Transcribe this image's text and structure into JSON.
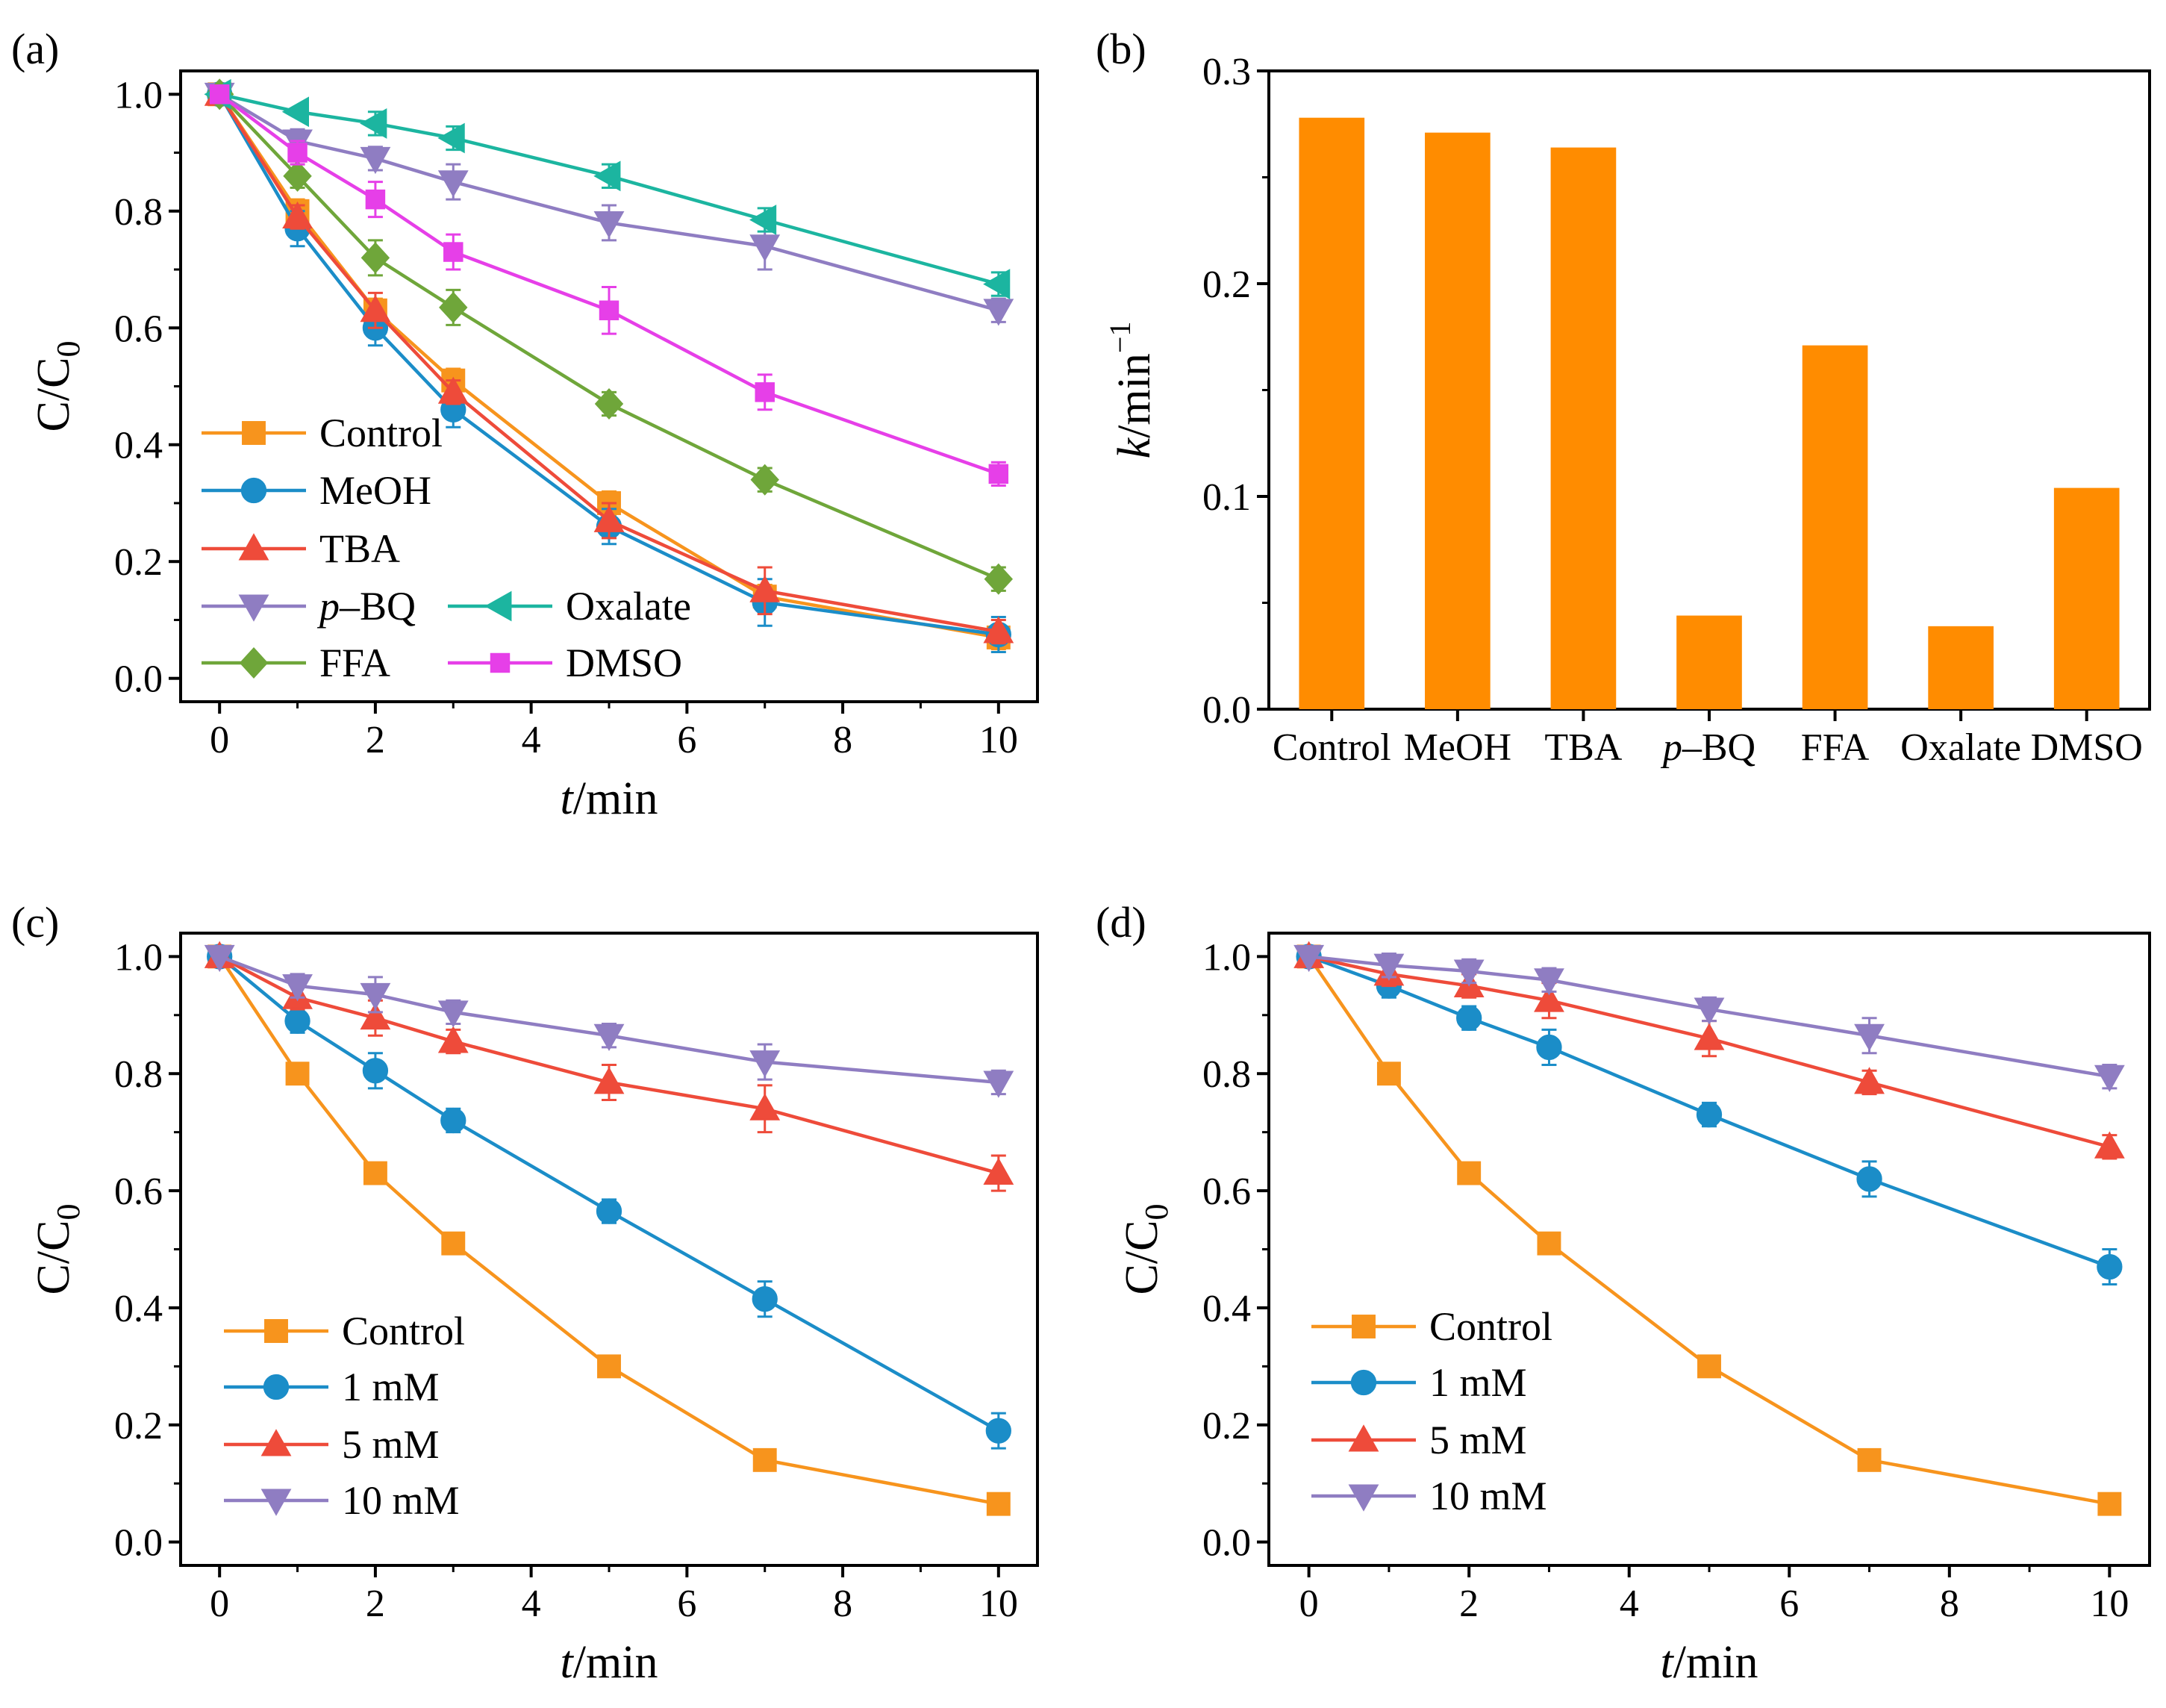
{
  "chart_data": [
    {
      "panel": "(a)",
      "type": "line",
      "xlabel_italic": "t",
      "xlabel_rest": "/min",
      "ylabel_main": "C/C",
      "ylabel_sub": "0",
      "xlim": [
        -0.5,
        10.5
      ],
      "ylim": [
        -0.04,
        1.04
      ],
      "xticks": [
        "0",
        "2",
        "4",
        "6",
        "8",
        "10"
      ],
      "yticks": [
        "0.0",
        "0.2",
        "0.4",
        "0.6",
        "0.8",
        "1.0"
      ],
      "x": [
        0,
        1,
        2,
        3,
        5,
        7,
        10
      ],
      "series": [
        {
          "name": "Control",
          "marker": "square",
          "color": "#F7941D",
          "values": [
            1.0,
            0.8,
            0.63,
            0.51,
            0.3,
            0.14,
            0.07
          ],
          "err": [
            0.01,
            0.02,
            0.02,
            0.02,
            0.02,
            0.02,
            0.02
          ]
        },
        {
          "name": "MeOH",
          "marker": "circle",
          "color": "#1B8DC8",
          "values": [
            1.0,
            0.77,
            0.6,
            0.46,
            0.26,
            0.13,
            0.075
          ],
          "err": [
            0.01,
            0.03,
            0.03,
            0.03,
            0.03,
            0.04,
            0.03
          ]
        },
        {
          "name": "TBA",
          "marker": "triangle-up",
          "color": "#EE4B3A",
          "values": [
            1.0,
            0.79,
            0.63,
            0.49,
            0.27,
            0.15,
            0.08
          ],
          "err": [
            0.01,
            0.02,
            0.03,
            0.02,
            0.03,
            0.04,
            0.02
          ]
        },
        {
          "name_prefix": "p",
          "name_suffix": "–BQ",
          "name": "p–BQ",
          "marker": "triangle-down",
          "color": "#8F7DC2",
          "values": [
            1.0,
            0.92,
            0.89,
            0.85,
            0.78,
            0.74,
            0.63
          ],
          "err": [
            0.01,
            0.02,
            0.02,
            0.03,
            0.03,
            0.04,
            0.02
          ]
        },
        {
          "name": "FFA",
          "marker": "diamond",
          "color": "#6FA63A",
          "values": [
            1.0,
            0.86,
            0.72,
            0.635,
            0.47,
            0.34,
            0.17
          ],
          "err": [
            0.01,
            0.02,
            0.03,
            0.03,
            0.02,
            0.02,
            0.02
          ]
        },
        {
          "name": "Oxalate",
          "marker": "triangle-left",
          "color": "#1CB5A0",
          "values": [
            1.0,
            0.97,
            0.95,
            0.925,
            0.86,
            0.785,
            0.675
          ],
          "err": [
            0.01,
            0.01,
            0.02,
            0.02,
            0.02,
            0.02,
            0.02
          ]
        },
        {
          "name": "DMSO",
          "marker": "square-small",
          "color": "#E63FE8",
          "values": [
            1.0,
            0.9,
            0.82,
            0.73,
            0.63,
            0.49,
            0.35
          ],
          "err": [
            0.01,
            0.02,
            0.03,
            0.03,
            0.04,
            0.03,
            0.02
          ]
        }
      ]
    },
    {
      "panel": "(b)",
      "type": "bar",
      "ylabel_italic": "k",
      "ylabel_rest": "/min",
      "ylabel_sup": "−1",
      "ylim": [
        0,
        0.3
      ],
      "yticks": [
        "0.0",
        "0.1",
        "0.2",
        "0.3"
      ],
      "bar_color": "#FF8C00",
      "categories": [
        "Control",
        "MeOH",
        "TBA",
        "p–BQ",
        "FFA",
        "Oxalate",
        "DMSO"
      ],
      "category_italic_prefix": [
        "",
        "",
        "",
        "p",
        "",
        "",
        ""
      ],
      "category_rest": [
        "Control",
        "MeOH",
        "TBA",
        "–BQ",
        "FFA",
        "Oxalate",
        "DMSO"
      ],
      "values": [
        0.278,
        0.271,
        0.264,
        0.044,
        0.171,
        0.039,
        0.104
      ]
    },
    {
      "panel": "(c)",
      "type": "line",
      "xlabel_italic": "t",
      "xlabel_rest": "/min",
      "ylabel_main": "C/C",
      "ylabel_sub": "0",
      "xlim": [
        -0.5,
        10.5
      ],
      "ylim": [
        -0.04,
        1.04
      ],
      "xticks": [
        "0",
        "2",
        "4",
        "6",
        "8",
        "10"
      ],
      "yticks": [
        "0.0",
        "0.2",
        "0.4",
        "0.6",
        "0.8",
        "1.0"
      ],
      "x": [
        0,
        1,
        2,
        3,
        5,
        7,
        10
      ],
      "series": [
        {
          "name": "Control",
          "marker": "square",
          "color": "#F7941D",
          "values": [
            1.0,
            0.8,
            0.63,
            0.51,
            0.3,
            0.14,
            0.065
          ],
          "err": [
            0.01,
            0.01,
            0.01,
            0.01,
            0.01,
            0.01,
            0.01
          ]
        },
        {
          "name": "1 mM",
          "marker": "circle",
          "color": "#1B8DC8",
          "values": [
            1.0,
            0.89,
            0.805,
            0.72,
            0.565,
            0.415,
            0.19
          ],
          "err": [
            0.01,
            0.02,
            0.03,
            0.02,
            0.02,
            0.03,
            0.03
          ]
        },
        {
          "name": "5 mM",
          "marker": "triangle-up",
          "color": "#EE4B3A",
          "values": [
            1.0,
            0.93,
            0.895,
            0.855,
            0.785,
            0.74,
            0.63
          ],
          "err": [
            0.01,
            0.02,
            0.03,
            0.02,
            0.03,
            0.04,
            0.03
          ]
        },
        {
          "name": "10 mM",
          "marker": "triangle-down",
          "color": "#8F7DC2",
          "values": [
            1.0,
            0.95,
            0.935,
            0.905,
            0.865,
            0.82,
            0.785
          ],
          "err": [
            0.01,
            0.02,
            0.03,
            0.02,
            0.02,
            0.03,
            0.02
          ]
        }
      ]
    },
    {
      "panel": "(d)",
      "type": "line",
      "xlabel_italic": "t",
      "xlabel_rest": "/min",
      "ylabel_main": "C/C",
      "ylabel_sub": "0",
      "xlim": [
        -0.5,
        10.5
      ],
      "ylim": [
        -0.04,
        1.04
      ],
      "xticks": [
        "0",
        "2",
        "4",
        "6",
        "8",
        "10"
      ],
      "yticks": [
        "0.0",
        "0.2",
        "0.4",
        "0.6",
        "0.8",
        "1.0"
      ],
      "x": [
        0,
        1,
        2,
        3,
        5,
        7,
        10
      ],
      "series": [
        {
          "name": "Control",
          "marker": "square",
          "color": "#F7941D",
          "values": [
            1.0,
            0.8,
            0.63,
            0.51,
            0.3,
            0.14,
            0.065
          ],
          "err": [
            0.01,
            0.01,
            0.01,
            0.01,
            0.01,
            0.01,
            0.01
          ]
        },
        {
          "name": "1 mM",
          "marker": "circle",
          "color": "#1B8DC8",
          "values": [
            1.0,
            0.95,
            0.895,
            0.845,
            0.73,
            0.62,
            0.47
          ],
          "err": [
            0.01,
            0.02,
            0.02,
            0.03,
            0.02,
            0.03,
            0.03
          ]
        },
        {
          "name": "5 mM",
          "marker": "triangle-up",
          "color": "#EE4B3A",
          "values": [
            1.0,
            0.97,
            0.95,
            0.925,
            0.86,
            0.785,
            0.675
          ],
          "err": [
            0.01,
            0.02,
            0.02,
            0.03,
            0.03,
            0.02,
            0.02
          ]
        },
        {
          "name": "10 mM",
          "marker": "triangle-down",
          "color": "#8F7DC2",
          "values": [
            1.0,
            0.985,
            0.975,
            0.96,
            0.91,
            0.865,
            0.795
          ],
          "err": [
            0.01,
            0.02,
            0.02,
            0.02,
            0.02,
            0.03,
            0.02
          ]
        }
      ]
    }
  ]
}
